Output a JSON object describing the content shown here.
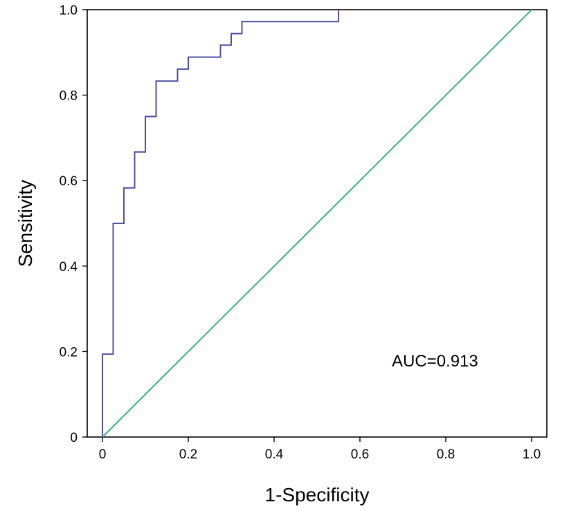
{
  "chart_data": {
    "type": "line",
    "title": "",
    "xlabel": "1-Specificity",
    "ylabel": "Sensitivity",
    "xlim": [
      0,
      1.0
    ],
    "ylim": [
      0,
      1.0
    ],
    "x_ticks": [
      "0",
      "0.2",
      "0.4",
      "0.6",
      "0.8",
      "1.0"
    ],
    "y_ticks": [
      "0",
      "0.2",
      "0.4",
      "0.6",
      "0.8",
      "1.0"
    ],
    "grid": false,
    "annotation": "AUC=0.913",
    "series": [
      {
        "color": "#4f4fa0",
        "style": "step",
        "x": [
          0,
          0,
          0.025,
          0.025,
          0.05,
          0.05,
          0.075,
          0.075,
          0.1,
          0.1,
          0.125,
          0.125,
          0.175,
          0.175,
          0.2,
          0.2,
          0.275,
          0.275,
          0.3,
          0.3,
          0.325,
          0.325,
          0.55,
          0.55
        ],
        "y": [
          0,
          0.194,
          0.194,
          0.5,
          0.5,
          0.583,
          0.583,
          0.667,
          0.667,
          0.75,
          0.75,
          0.833,
          0.833,
          0.861,
          0.861,
          0.889,
          0.889,
          0.917,
          0.917,
          0.944,
          0.944,
          0.972,
          0.972,
          1.0
        ]
      },
      {
        "color": "#3cb37a",
        "style": "diagonal",
        "x": [
          0,
          1.0
        ],
        "y": [
          0,
          1.0
        ]
      }
    ]
  }
}
